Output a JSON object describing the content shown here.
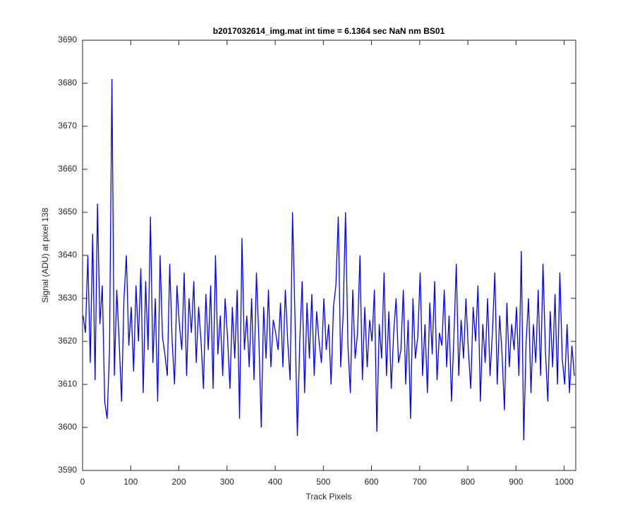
{
  "chart_data": {
    "type": "line",
    "title": "b2017032614_img.mat int time = 6.1364 sec  NaN nm BS01",
    "x_label": "Track Pixels",
    "y_label": "Signal (ADU) at pixel 138",
    "xlim": [
      0,
      1024
    ],
    "ylim": [
      3590,
      3690
    ],
    "xticks": [
      0,
      100,
      200,
      300,
      400,
      500,
      600,
      700,
      800,
      900,
      1000
    ],
    "yticks": [
      3590,
      3600,
      3610,
      3620,
      3630,
      3640,
      3650,
      3660,
      3670,
      3680,
      3690
    ],
    "x": [
      1,
      6,
      11,
      16,
      21,
      26,
      31,
      36,
      41,
      46,
      51,
      56,
      61,
      66,
      71,
      76,
      81,
      86,
      91,
      96,
      101,
      106,
      111,
      116,
      121,
      126,
      131,
      136,
      141,
      146,
      151,
      156,
      161,
      166,
      171,
      176,
      181,
      186,
      191,
      196,
      201,
      206,
      211,
      216,
      221,
      226,
      231,
      236,
      241,
      246,
      251,
      256,
      261,
      266,
      271,
      276,
      281,
      286,
      291,
      296,
      301,
      306,
      311,
      316,
      321,
      326,
      331,
      336,
      341,
      346,
      351,
      356,
      361,
      366,
      371,
      376,
      381,
      386,
      391,
      396,
      401,
      406,
      411,
      416,
      421,
      426,
      431,
      436,
      441,
      446,
      451,
      456,
      461,
      466,
      471,
      476,
      481,
      486,
      491,
      496,
      501,
      506,
      511,
      516,
      521,
      526,
      531,
      536,
      541,
      546,
      551,
      556,
      561,
      566,
      571,
      576,
      581,
      586,
      591,
      596,
      601,
      606,
      611,
      616,
      621,
      626,
      631,
      636,
      641,
      646,
      651,
      656,
      661,
      666,
      671,
      676,
      681,
      686,
      691,
      696,
      701,
      706,
      711,
      716,
      721,
      726,
      731,
      736,
      741,
      746,
      751,
      756,
      761,
      766,
      771,
      776,
      781,
      786,
      791,
      796,
      801,
      806,
      811,
      816,
      821,
      826,
      831,
      836,
      841,
      846,
      851,
      856,
      861,
      866,
      871,
      876,
      881,
      886,
      891,
      896,
      901,
      906,
      911,
      916,
      921,
      926,
      931,
      936,
      941,
      946,
      951,
      956,
      961,
      966,
      971,
      976,
      981,
      986,
      991,
      996,
      1001,
      1006,
      1011,
      1016,
      1021
    ],
    "series": [
      {
        "color": "#0000ff",
        "values": [
          3626,
          3622,
          3640,
          3615,
          3645,
          3611,
          3652,
          3624,
          3633,
          3606,
          3602,
          3618,
          3681,
          3612,
          3632,
          3620,
          3606,
          3630,
          3640,
          3619,
          3628,
          3613,
          3633,
          3620,
          3637,
          3608,
          3634,
          3618,
          3649,
          3615,
          3630,
          3606,
          3640,
          3621,
          3617,
          3612,
          3638,
          3620,
          3610,
          3633,
          3624,
          3618,
          3636,
          3612,
          3630,
          3622,
          3634,
          3615,
          3628,
          3620,
          3609,
          3631,
          3618,
          3633,
          3609,
          3640,
          3617,
          3626,
          3612,
          3630,
          3621,
          3609,
          3628,
          3616,
          3632,
          3602,
          3644,
          3618,
          3626,
          3614,
          3630,
          3611,
          3636,
          3621,
          3600,
          3628,
          3616,
          3632,
          3614,
          3625,
          3622,
          3618,
          3629,
          3614,
          3632,
          3620,
          3611,
          3650,
          3626,
          3598,
          3620,
          3634,
          3608,
          3629,
          3616,
          3631,
          3612,
          3627,
          3620,
          3615,
          3630,
          3618,
          3624,
          3610,
          3628,
          3633,
          3649,
          3614,
          3626,
          3650,
          3619,
          3608,
          3632,
          3616,
          3622,
          3640,
          3611,
          3628,
          3614,
          3625,
          3620,
          3632,
          3599,
          3624,
          3616,
          3636,
          3612,
          3627,
          3609,
          3622,
          3630,
          3615,
          3618,
          3632,
          3610,
          3625,
          3602,
          3630,
          3616,
          3621,
          3636,
          3612,
          3624,
          3608,
          3629,
          3617,
          3634,
          3611,
          3622,
          3619,
          3632,
          3614,
          3626,
          3606,
          3621,
          3638,
          3612,
          3625,
          3616,
          3630,
          3618,
          3609,
          3628,
          3620,
          3633,
          3606,
          3624,
          3615,
          3630,
          3612,
          3622,
          3636,
          3610,
          3626,
          3617,
          3604,
          3629,
          3614,
          3624,
          3618,
          3628,
          3612,
          3641,
          3597,
          3620,
          3630,
          3608,
          3624,
          3615,
          3632,
          3612,
          3638,
          3618,
          3606,
          3627,
          3614,
          3631,
          3610,
          3636,
          3616,
          3610,
          3624,
          3608,
          3619,
          3612
        ]
      }
    ]
  }
}
